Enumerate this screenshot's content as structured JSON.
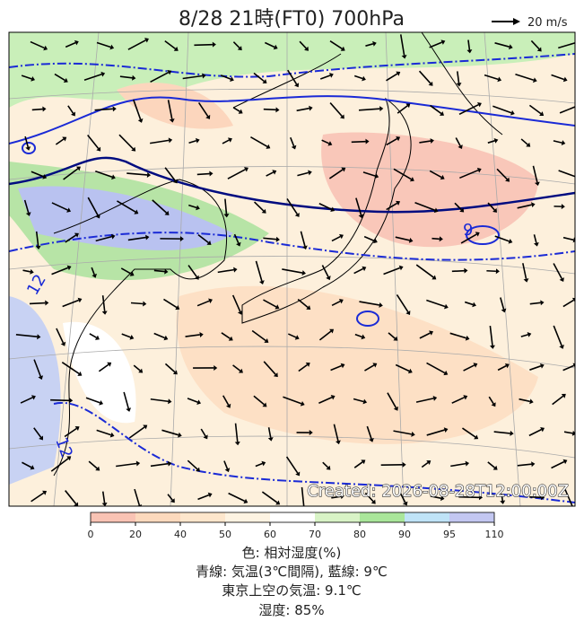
{
  "header": {
    "title": "8/28  21時(FT0)    700hPa",
    "wind_scale": "20 m/s"
  },
  "map": {
    "created": "Created: 2026-08-28T12:00:00Z",
    "contour_labels": [
      "12",
      "9",
      "12"
    ]
  },
  "colorbar": {
    "ticks": [
      0,
      20,
      40,
      50,
      60,
      70,
      80,
      90,
      95,
      110
    ],
    "colors": [
      "#f9c3b4",
      "#fcd9bd",
      "#fde6cc",
      "#fdf3e2",
      "#ffffff",
      "#d8f3c6",
      "#a9e69a",
      "#bfe3f7",
      "#c3c7f1"
    ]
  },
  "caption": [
    "色: 相対湿度(%)",
    "青線: 気温(3℃間隔), 藍線: 9℃",
    "東京上空の気温: 9.1℃",
    "湿度: 85%"
  ]
}
